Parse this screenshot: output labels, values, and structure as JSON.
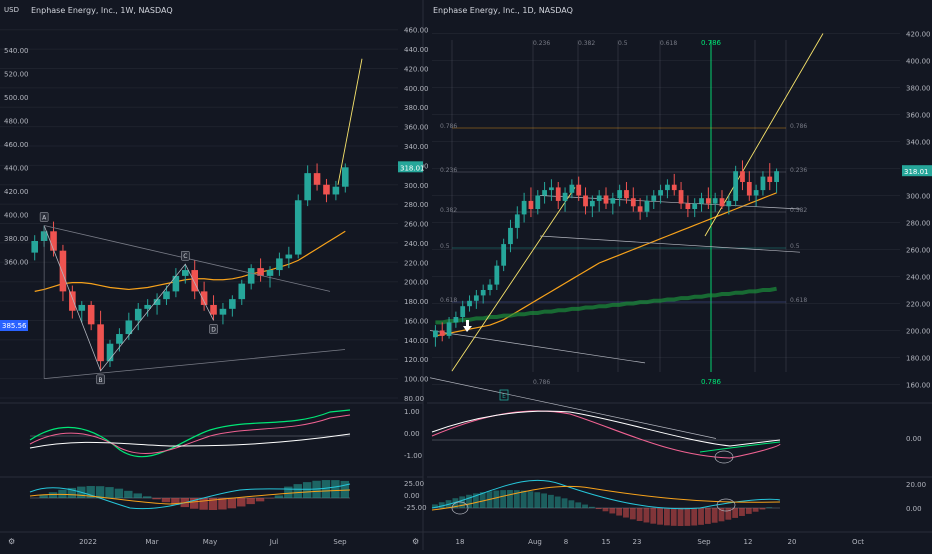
{
  "theme": {
    "bg": "#131722",
    "grid": "#1e222d",
    "text": "#b2b5be",
    "up": "#26a69a",
    "down": "#ef5350",
    "price_tag": "#26a69a",
    "price_tag_blue": "#2962ff"
  },
  "left": {
    "title": "Enphase Energy, Inc., 1W, NASDAQ",
    "currency": "USD",
    "right_axis_ticks": [
      "460.00",
      "440.00",
      "420.00",
      "400.00",
      "380.00",
      "360.00",
      "340.00",
      "320.00",
      "300.00",
      "280.00",
      "260.00",
      "240.00",
      "220.00",
      "200.00",
      "180.00",
      "160.00",
      "140.00",
      "120.00",
      "100.00",
      "80.00"
    ],
    "left_axis_ticks": [
      "540.00",
      "520.00",
      "500.00",
      "480.00",
      "460.00",
      "440.00",
      "420.00",
      "400.00",
      "380.00",
      "360.00"
    ],
    "last_price": "318.01",
    "left_price_tag": "385.56",
    "pattern_labels": [
      "A",
      "B",
      "C",
      "D"
    ],
    "osc1_ticks": [
      "1.00",
      "0.00",
      "-1.00"
    ],
    "osc2_ticks": [
      "25.00",
      "0.00",
      "-25.00"
    ],
    "time_ticks": [
      "2022",
      "Mar",
      "May",
      "Jul",
      "Sep"
    ],
    "chart_data": {
      "type": "candlestick",
      "timeframe": "1W",
      "ylim": [
        80,
        470
      ],
      "candles": [
        [
          230,
          248,
          222,
          242
        ],
        [
          242,
          258,
          236,
          252
        ],
        [
          252,
          262,
          226,
          232
        ],
        [
          232,
          238,
          180,
          190
        ],
        [
          190,
          196,
          162,
          170
        ],
        [
          170,
          180,
          158,
          176
        ],
        [
          176,
          180,
          150,
          156
        ],
        [
          156,
          170,
          108,
          118
        ],
        [
          118,
          140,
          112,
          136
        ],
        [
          136,
          152,
          128,
          146
        ],
        [
          146,
          168,
          140,
          160
        ],
        [
          160,
          178,
          150,
          172
        ],
        [
          172,
          182,
          164,
          176
        ],
        [
          176,
          188,
          166,
          182
        ],
        [
          182,
          196,
          176,
          190
        ],
        [
          190,
          214,
          184,
          206
        ],
        [
          206,
          218,
          198,
          212
        ],
        [
          212,
          222,
          182,
          190
        ],
        [
          190,
          200,
          170,
          176
        ],
        [
          176,
          186,
          160,
          166
        ],
        [
          166,
          178,
          156,
          172
        ],
        [
          172,
          186,
          164,
          182
        ],
        [
          182,
          202,
          176,
          198
        ],
        [
          198,
          218,
          192,
          214
        ],
        [
          214,
          224,
          200,
          206
        ],
        [
          206,
          216,
          194,
          212
        ],
        [
          212,
          230,
          206,
          224
        ],
        [
          224,
          236,
          214,
          228
        ],
        [
          228,
          290,
          224,
          284
        ],
        [
          284,
          320,
          278,
          312
        ],
        [
          312,
          322,
          294,
          300
        ],
        [
          300,
          306,
          282,
          290
        ],
        [
          290,
          304,
          284,
          298
        ],
        [
          298,
          322,
          292,
          318
        ]
      ],
      "moving_average": [
        190,
        192,
        195,
        198,
        199,
        199,
        198,
        196,
        194,
        193,
        192,
        193,
        194,
        196,
        198,
        200,
        202,
        203,
        203,
        202,
        202,
        203,
        205,
        208,
        210,
        212,
        215,
        218,
        222,
        228,
        234,
        240,
        246,
        252
      ]
    }
  },
  "right": {
    "title": "Enphase Energy, Inc., 1D, NASDAQ",
    "axis_ticks": [
      "420.00",
      "400.00",
      "380.00",
      "360.00",
      "340.00",
      "320.00",
      "300.00",
      "280.00",
      "260.00",
      "240.00",
      "220.00",
      "200.00",
      "180.00",
      "160.00"
    ],
    "last_price": "318.01",
    "fib_levels": [
      "0.786",
      "0.236",
      "0.382",
      "0.5",
      "0.618",
      "0.786",
      "0.236",
      "0.382",
      "0.5",
      "0.618",
      "0.786",
      "0.236",
      "0.382",
      "0.5",
      "0.618",
      "0.786"
    ],
    "fib_top": "0.786",
    "fib_bottom": "0.786",
    "marker_e": "E",
    "osc1_ticks": [
      "0.00"
    ],
    "osc2_ticks": [
      "20.00",
      "0.00"
    ],
    "time_ticks": [
      "18",
      "Aug",
      "8",
      "15",
      "23",
      "Sep",
      "12",
      "20",
      "Oct"
    ],
    "chart_data": {
      "type": "candlestick",
      "timeframe": "1D",
      "ylim": [
        150,
        430
      ],
      "candles": [
        [
          195,
          204,
          188,
          200
        ],
        [
          200,
          206,
          192,
          196
        ],
        [
          196,
          210,
          194,
          206
        ],
        [
          206,
          214,
          202,
          210
        ],
        [
          210,
          222,
          206,
          218
        ],
        [
          218,
          226,
          214,
          222
        ],
        [
          222,
          230,
          216,
          226
        ],
        [
          226,
          234,
          220,
          230
        ],
        [
          230,
          238,
          226,
          234
        ],
        [
          234,
          252,
          230,
          248
        ],
        [
          248,
          268,
          244,
          264
        ],
        [
          264,
          282,
          258,
          276
        ],
        [
          276,
          292,
          268,
          286
        ],
        [
          286,
          302,
          280,
          296
        ],
        [
          296,
          306,
          284,
          290
        ],
        [
          290,
          304,
          286,
          300
        ],
        [
          300,
          310,
          294,
          304
        ],
        [
          304,
          312,
          296,
          306
        ],
        [
          306,
          310,
          290,
          296
        ],
        [
          296,
          306,
          288,
          302
        ],
        [
          302,
          312,
          298,
          308
        ],
        [
          308,
          314,
          296,
          300
        ],
        [
          300,
          306,
          286,
          292
        ],
        [
          292,
          300,
          284,
          296
        ],
        [
          296,
          304,
          288,
          300
        ],
        [
          300,
          306,
          290,
          294
        ],
        [
          294,
          302,
          286,
          298
        ],
        [
          298,
          308,
          292,
          304
        ],
        [
          304,
          310,
          294,
          298
        ],
        [
          298,
          306,
          288,
          292
        ],
        [
          292,
          298,
          282,
          288
        ],
        [
          288,
          300,
          284,
          296
        ],
        [
          296,
          304,
          290,
          300
        ],
        [
          300,
          308,
          294,
          304
        ],
        [
          304,
          312,
          298,
          308
        ],
        [
          308,
          316,
          300,
          304
        ],
        [
          304,
          310,
          290,
          294
        ],
        [
          294,
          300,
          284,
          290
        ],
        [
          290,
          298,
          284,
          294
        ],
        [
          294,
          302,
          288,
          298
        ],
        [
          298,
          306,
          290,
          294
        ],
        [
          294,
          302,
          288,
          298
        ],
        [
          298,
          304,
          290,
          292
        ],
        [
          292,
          300,
          286,
          296
        ],
        [
          296,
          322,
          292,
          318
        ],
        [
          318,
          326,
          304,
          310
        ],
        [
          310,
          318,
          296,
          300
        ],
        [
          300,
          308,
          292,
          304
        ],
        [
          304,
          318,
          300,
          314
        ],
        [
          314,
          324,
          304,
          310
        ],
        [
          310,
          320,
          302,
          318
        ]
      ],
      "ma_orange": [
        196,
        197,
        198,
        199,
        200,
        201,
        202,
        203,
        204,
        206,
        208,
        211,
        214,
        217,
        220,
        223,
        226,
        229,
        232,
        235,
        238,
        241,
        244,
        247,
        250,
        252,
        254,
        256,
        258,
        260,
        262,
        264,
        266,
        268,
        270,
        272,
        274,
        276,
        278,
        280,
        282,
        284,
        286,
        288,
        290,
        292,
        294,
        296,
        298,
        300,
        302
      ],
      "ma_green": [
        206,
        206,
        207,
        207,
        208,
        208,
        209,
        209,
        210,
        210,
        211,
        211,
        212,
        212,
        213,
        213,
        214,
        214,
        215,
        215,
        216,
        216,
        217,
        217,
        218,
        218,
        219,
        219,
        220,
        220,
        221,
        221,
        222,
        222,
        223,
        223,
        224,
        224,
        225,
        225,
        226,
        226,
        227,
        227,
        228,
        228,
        229,
        229,
        230,
        230,
        231
      ]
    }
  }
}
